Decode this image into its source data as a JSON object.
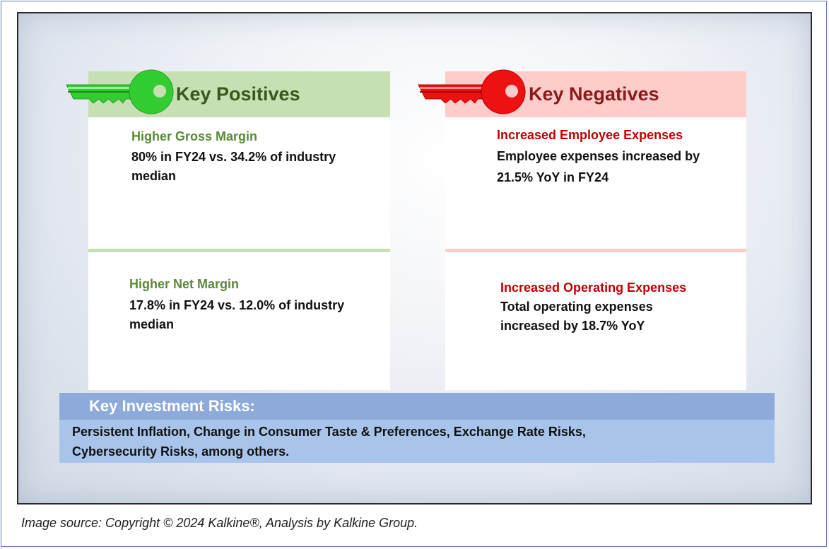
{
  "positives": {
    "header": "Key Positives",
    "items": [
      {
        "title": "Higher Gross Margin",
        "body_line1": "80% in FY24 vs. 34.2% of industry",
        "body_line2": "median"
      },
      {
        "title": "Higher Net Margin",
        "body_line1": "17.8% in FY24 vs. 12.0% of industry",
        "body_line2": "median"
      }
    ],
    "color": "#37591b",
    "key_icon": "green-key-icon"
  },
  "negatives": {
    "header": "Key Negatives",
    "items": [
      {
        "title": "Increased Employee Expenses",
        "body_line1": "Employee expenses increased by",
        "body_line2": "21.5% YoY in FY24"
      },
      {
        "title": "Increased Operating Expenses",
        "body_line1": "Total operating expenses",
        "body_line2": "increased by 18.7% YoY"
      }
    ],
    "color": "#c00000",
    "key_icon": "red-key-icon"
  },
  "risks": {
    "header": "Key Investment Risks:",
    "line1": "Persistent Inflation, Change in Consumer Taste & Preferences, Exchange Rate Risks,",
    "line2": "Cybersecurity Risks,  among others."
  },
  "caption": "Image source: Copyright © 2024 Kalkine®, Analysis by Kalkine Group."
}
